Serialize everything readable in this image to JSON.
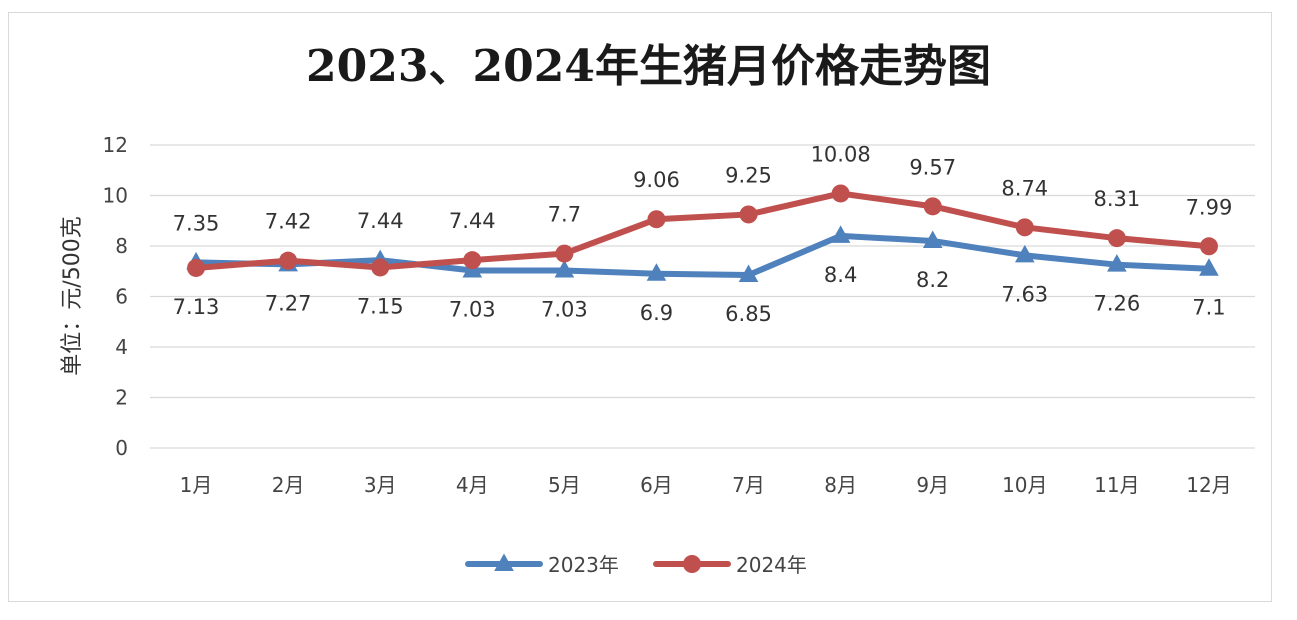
{
  "chart_data": {
    "type": "line",
    "title": "2023、2024年生猪月价格走势图",
    "ylabel": "单位：元/500克",
    "xlabel": "",
    "ylim": [
      0,
      12
    ],
    "yticks": [
      0,
      2,
      4,
      6,
      8,
      10,
      12
    ],
    "grid": true,
    "legend_position": "bottom",
    "categories": [
      "1月",
      "2月",
      "3月",
      "4月",
      "5月",
      "6月",
      "7月",
      "8月",
      "9月",
      "10月",
      "11月",
      "12月"
    ],
    "series": [
      {
        "name": "2023年",
        "color": "#4f81bd",
        "marker": "triangle",
        "values": [
          7.35,
          7.27,
          7.44,
          7.03,
          7.03,
          6.9,
          6.85,
          8.4,
          8.2,
          7.63,
          7.26,
          7.1
        ],
        "labels": [
          "7.35",
          "7.27",
          "7.44",
          "7.03",
          "7.03",
          "6.9",
          "6.85",
          "8.4",
          "8.2",
          "7.63",
          "7.26",
          "7.1"
        ]
      },
      {
        "name": "2024年",
        "color": "#c0504d",
        "marker": "circle",
        "values": [
          7.13,
          7.42,
          7.15,
          7.44,
          7.7,
          9.06,
          9.25,
          10.08,
          9.57,
          8.74,
          8.31,
          7.99
        ],
        "labels": [
          "7.13",
          "7.42",
          "7.15",
          "7.44",
          "7.7",
          "9.06",
          "9.25",
          "10.08",
          "9.57",
          "8.74",
          "8.31",
          "7.99"
        ]
      }
    ]
  }
}
